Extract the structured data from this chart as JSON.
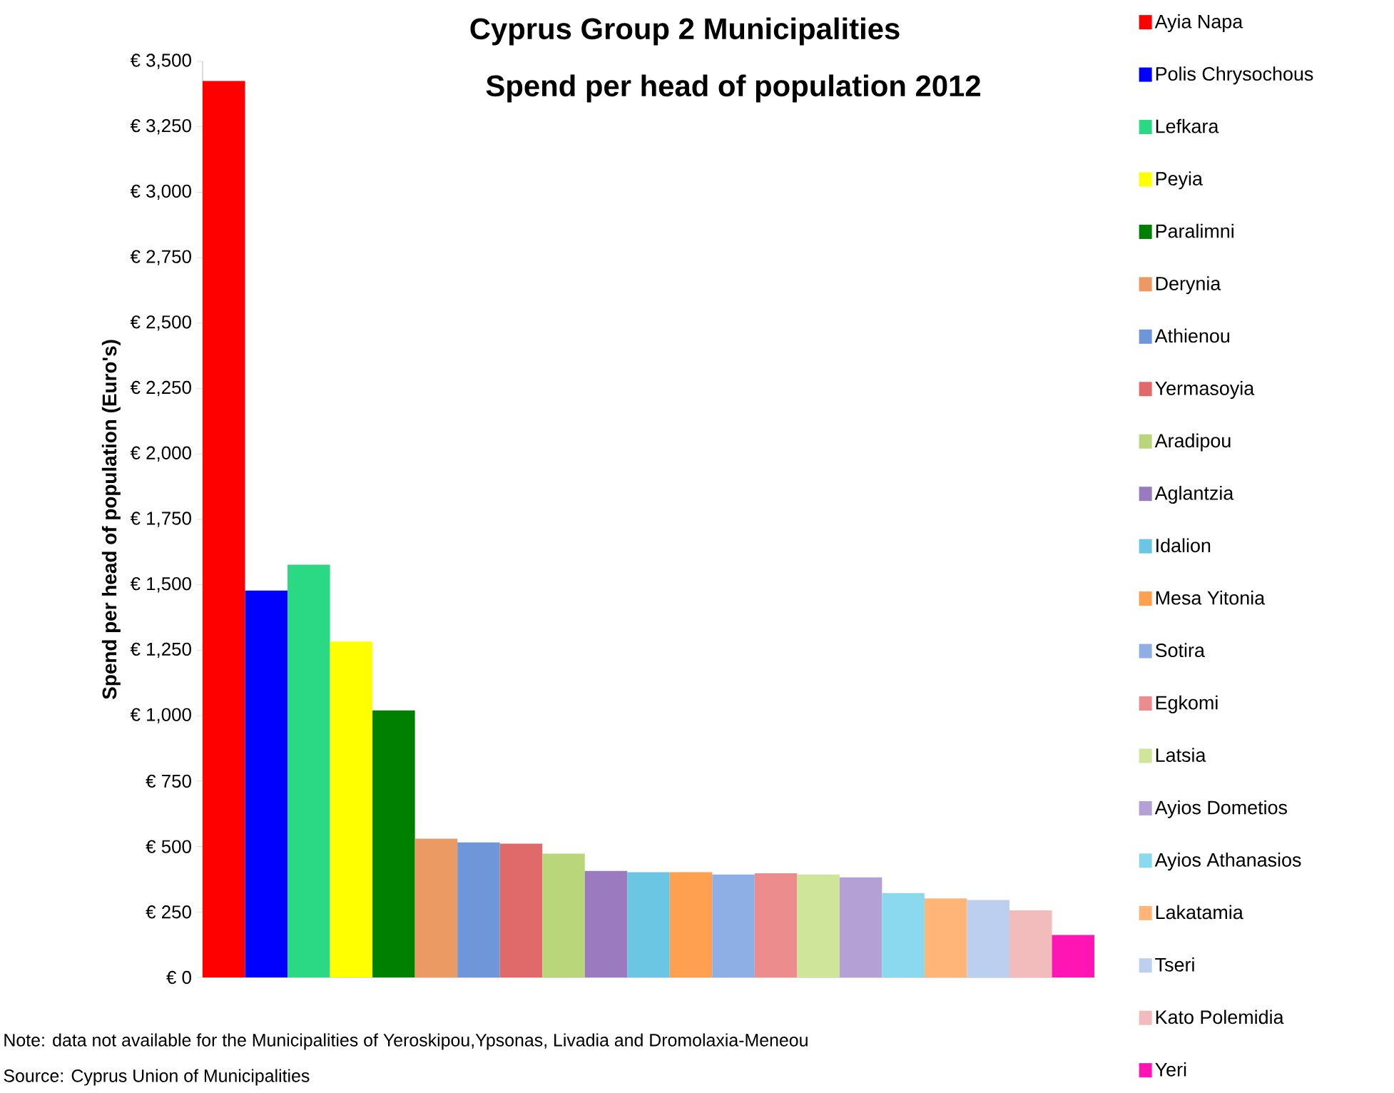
{
  "chart_data": {
    "type": "bar",
    "title": "Cyprus Group 2 Municipalities",
    "subtitle": "Spend per head of population 2012",
    "ylabel": "Spend per head  of population (Euro's)",
    "categories": [
      null,
      null,
      null,
      null,
      null,
      null,
      null,
      null,
      null,
      null,
      null,
      null,
      null,
      null,
      null,
      null,
      null,
      null,
      null,
      null,
      null
    ],
    "series": [
      {
        "name": "Ayia Napa",
        "color": "#ff0000",
        "values": [
          3425,
          null,
          null,
          null,
          null,
          null,
          null,
          null,
          null,
          null,
          null,
          null,
          null,
          null,
          null,
          null,
          null,
          null,
          null,
          null,
          null
        ]
      },
      {
        "name": "Polis Chrysochous",
        "color": "#0000ff",
        "values": [
          null,
          1478,
          null,
          null,
          null,
          null,
          null,
          null,
          null,
          null,
          null,
          null,
          null,
          null,
          null,
          null,
          null,
          null,
          null,
          null,
          null
        ]
      },
      {
        "name": "Lefkara",
        "color": "#2bd883",
        "values": [
          null,
          null,
          1577,
          null,
          null,
          null,
          null,
          null,
          null,
          null,
          null,
          null,
          null,
          null,
          null,
          null,
          null,
          null,
          null,
          null,
          null
        ]
      },
      {
        "name": "Peyia",
        "color": "#ffff00",
        "values": [
          null,
          null,
          null,
          1283,
          null,
          null,
          null,
          null,
          null,
          null,
          null,
          null,
          null,
          null,
          null,
          null,
          null,
          null,
          null,
          null,
          null
        ]
      },
      {
        "name": "Paralimni",
        "color": "#008000",
        "values": [
          null,
          null,
          null,
          null,
          1020,
          null,
          null,
          null,
          null,
          null,
          null,
          null,
          null,
          null,
          null,
          null,
          null,
          null,
          null,
          null,
          null
        ]
      },
      {
        "name": "Derynia",
        "color": "#eb9a63",
        "values": [
          null,
          null,
          null,
          null,
          null,
          530,
          null,
          null,
          null,
          null,
          null,
          null,
          null,
          null,
          null,
          null,
          null,
          null,
          null,
          null,
          null
        ]
      },
      {
        "name": "Athienou",
        "color": "#6e96d8",
        "values": [
          null,
          null,
          null,
          null,
          null,
          null,
          516,
          null,
          null,
          null,
          null,
          null,
          null,
          null,
          null,
          null,
          null,
          null,
          null,
          null,
          null
        ]
      },
      {
        "name": "Yermasoyia",
        "color": "#e06a6a",
        "values": [
          null,
          null,
          null,
          null,
          null,
          null,
          null,
          511,
          null,
          null,
          null,
          null,
          null,
          null,
          null,
          null,
          null,
          null,
          null,
          null,
          null
        ]
      },
      {
        "name": "Aradipou",
        "color": "#b9d67a",
        "values": [
          null,
          null,
          null,
          null,
          null,
          null,
          null,
          null,
          473,
          null,
          null,
          null,
          null,
          null,
          null,
          null,
          null,
          null,
          null,
          null,
          null
        ]
      },
      {
        "name": "Aglantzia",
        "color": "#9b7bbf",
        "values": [
          null,
          null,
          null,
          null,
          null,
          null,
          null,
          null,
          null,
          407,
          null,
          null,
          null,
          null,
          null,
          null,
          null,
          null,
          null,
          null,
          null
        ]
      },
      {
        "name": "Idalion",
        "color": "#6bc6e4",
        "values": [
          null,
          null,
          null,
          null,
          null,
          null,
          null,
          null,
          null,
          null,
          402,
          null,
          null,
          null,
          null,
          null,
          null,
          null,
          null,
          null,
          null
        ]
      },
      {
        "name": "Mesa Yitonia",
        "color": "#ffa050",
        "values": [
          null,
          null,
          null,
          null,
          null,
          null,
          null,
          null,
          null,
          null,
          null,
          402,
          null,
          null,
          null,
          null,
          null,
          null,
          null,
          null,
          null
        ]
      },
      {
        "name": "Sotira",
        "color": "#8eaee6",
        "values": [
          null,
          null,
          null,
          null,
          null,
          null,
          null,
          null,
          null,
          null,
          null,
          null,
          393,
          null,
          null,
          null,
          null,
          null,
          null,
          null,
          null
        ]
      },
      {
        "name": "Egkomi",
        "color": "#ec8c8c",
        "values": [
          null,
          null,
          null,
          null,
          null,
          null,
          null,
          null,
          null,
          null,
          null,
          null,
          null,
          398,
          null,
          null,
          null,
          null,
          null,
          null,
          null
        ]
      },
      {
        "name": "Latsia",
        "color": "#cfe69a",
        "values": [
          null,
          null,
          null,
          null,
          null,
          null,
          null,
          null,
          null,
          null,
          null,
          null,
          null,
          null,
          393,
          null,
          null,
          null,
          null,
          null,
          null
        ]
      },
      {
        "name": "Ayios Dometios",
        "color": "#b5a0d6",
        "values": [
          null,
          null,
          null,
          null,
          null,
          null,
          null,
          null,
          null,
          null,
          null,
          null,
          null,
          null,
          null,
          382,
          null,
          null,
          null,
          null,
          null
        ]
      },
      {
        "name": "Ayios Athanasios",
        "color": "#8ad9ef",
        "values": [
          null,
          null,
          null,
          null,
          null,
          null,
          null,
          null,
          null,
          null,
          null,
          null,
          null,
          null,
          null,
          null,
          322,
          null,
          null,
          null,
          null
        ]
      },
      {
        "name": "Lakatamia",
        "color": "#ffb478",
        "values": [
          null,
          null,
          null,
          null,
          null,
          null,
          null,
          null,
          null,
          null,
          null,
          null,
          null,
          null,
          null,
          null,
          null,
          302,
          null,
          null,
          null
        ]
      },
      {
        "name": "Tseri",
        "color": "#bccfee",
        "values": [
          null,
          null,
          null,
          null,
          null,
          null,
          null,
          null,
          null,
          null,
          null,
          null,
          null,
          null,
          null,
          null,
          null,
          null,
          296,
          null,
          null
        ]
      },
      {
        "name": "Kato Polemidia",
        "color": "#f2bcbc",
        "values": [
          null,
          null,
          null,
          null,
          null,
          null,
          null,
          null,
          null,
          null,
          null,
          null,
          null,
          null,
          null,
          null,
          null,
          null,
          null,
          256,
          null
        ]
      },
      {
        "name": "Yeri",
        "color": "#ff14b4",
        "values": [
          null,
          null,
          null,
          null,
          null,
          null,
          null,
          null,
          null,
          null,
          null,
          null,
          null,
          null,
          null,
          null,
          null,
          null,
          null,
          null,
          162
        ]
      }
    ],
    "ylim": [
      0,
      3500
    ],
    "yticks": [
      {
        "value": 0,
        "label": "€ 0"
      },
      {
        "value": 250,
        "label": "€ 250"
      },
      {
        "value": 500,
        "label": "€ 500"
      },
      {
        "value": 750,
        "label": "€ 750"
      },
      {
        "value": 1000,
        "label": "€ 1,000"
      },
      {
        "value": 1250,
        "label": "€ 1,250"
      },
      {
        "value": 1500,
        "label": "€ 1,500"
      },
      {
        "value": 1750,
        "label": "€ 1,750"
      },
      {
        "value": 2000,
        "label": "€ 2,000"
      },
      {
        "value": 2250,
        "label": "€ 2,250"
      },
      {
        "value": 2500,
        "label": "€ 2,500"
      },
      {
        "value": 2750,
        "label": "€ 2,750"
      },
      {
        "value": 3000,
        "label": "€ 3,000"
      },
      {
        "value": 3250,
        "label": "€ 3,250"
      },
      {
        "value": 3500,
        "label": "€ 3,500"
      }
    ],
    "legend": "right",
    "tick_labels": "y",
    "annotations": [
      "Note: data  not available for the Municipalities of Yeroskipou,Ypsonas,  Livadia and Dromolaxia-Meneou",
      "Source: Cyprus Union of Municipalities"
    ]
  }
}
